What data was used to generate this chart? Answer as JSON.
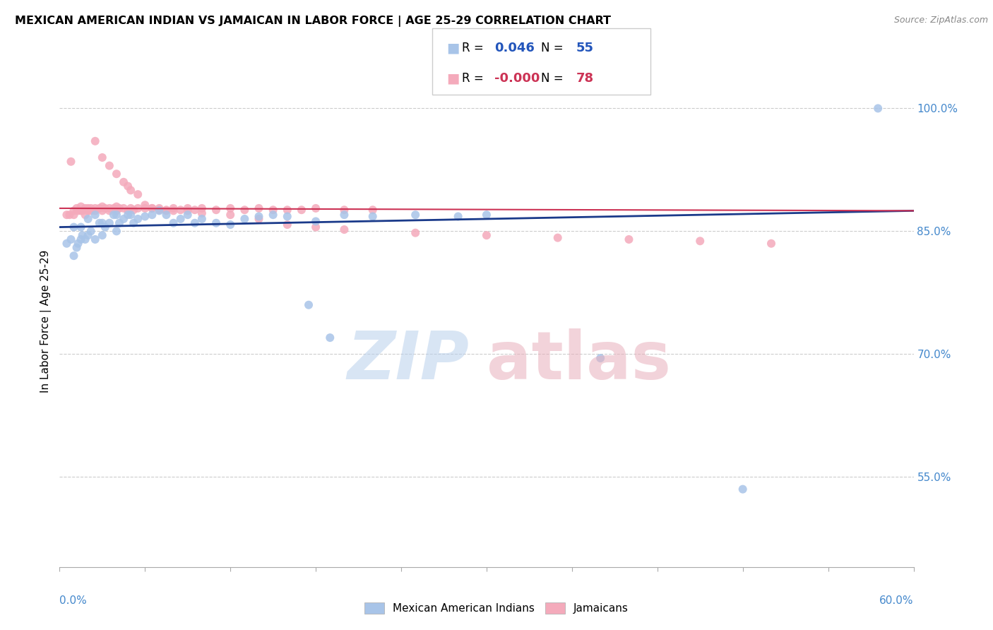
{
  "title": "MEXICAN AMERICAN INDIAN VS JAMAICAN IN LABOR FORCE | AGE 25-29 CORRELATION CHART",
  "source": "Source: ZipAtlas.com",
  "ylabel": "In Labor Force | Age 25-29",
  "blue_R": "0.046",
  "blue_N": "55",
  "pink_R": "-0.000",
  "pink_N": "78",
  "blue_color": "#a8c4e8",
  "pink_color": "#f4aabb",
  "blue_line_color": "#1a3a8a",
  "pink_line_color": "#cc3355",
  "legend_label_blue": "Mexican American Indians",
  "legend_label_pink": "Jamaicans",
  "xlim": [
    0.0,
    0.6
  ],
  "ylim": [
    0.44,
    1.04
  ],
  "yticks": [
    0.55,
    0.7,
    0.85,
    1.0
  ],
  "ytick_labels": [
    "55.0%",
    "70.0%",
    "85.0%",
    "100.0%"
  ],
  "blue_scatter_x": [
    0.005,
    0.008,
    0.01,
    0.01,
    0.012,
    0.013,
    0.015,
    0.015,
    0.016,
    0.018,
    0.02,
    0.02,
    0.022,
    0.025,
    0.025,
    0.028,
    0.03,
    0.03,
    0.032,
    0.035,
    0.038,
    0.04,
    0.04,
    0.042,
    0.045,
    0.048,
    0.05,
    0.052,
    0.055,
    0.06,
    0.065,
    0.07,
    0.075,
    0.08,
    0.085,
    0.09,
    0.095,
    0.1,
    0.11,
    0.12,
    0.13,
    0.14,
    0.15,
    0.16,
    0.18,
    0.2,
    0.22,
    0.25,
    0.28,
    0.3,
    0.175,
    0.19,
    0.38,
    0.48,
    0.575
  ],
  "blue_scatter_y": [
    0.835,
    0.84,
    0.82,
    0.855,
    0.83,
    0.835,
    0.84,
    0.855,
    0.845,
    0.84,
    0.845,
    0.865,
    0.85,
    0.87,
    0.84,
    0.86,
    0.86,
    0.845,
    0.855,
    0.86,
    0.87,
    0.87,
    0.85,
    0.86,
    0.865,
    0.87,
    0.87,
    0.86,
    0.865,
    0.868,
    0.87,
    0.875,
    0.87,
    0.86,
    0.865,
    0.87,
    0.86,
    0.865,
    0.86,
    0.858,
    0.865,
    0.868,
    0.87,
    0.868,
    0.862,
    0.87,
    0.868,
    0.87,
    0.868,
    0.87,
    0.76,
    0.72,
    0.695,
    0.535,
    1.0
  ],
  "pink_scatter_x": [
    0.005,
    0.007,
    0.008,
    0.01,
    0.01,
    0.012,
    0.013,
    0.015,
    0.015,
    0.016,
    0.018,
    0.018,
    0.02,
    0.02,
    0.022,
    0.022,
    0.025,
    0.025,
    0.028,
    0.03,
    0.03,
    0.032,
    0.035,
    0.035,
    0.038,
    0.04,
    0.04,
    0.042,
    0.045,
    0.048,
    0.05,
    0.052,
    0.055,
    0.06,
    0.065,
    0.07,
    0.075,
    0.08,
    0.085,
    0.09,
    0.095,
    0.1,
    0.11,
    0.12,
    0.13,
    0.14,
    0.15,
    0.16,
    0.17,
    0.18,
    0.2,
    0.22,
    0.025,
    0.03,
    0.035,
    0.04,
    0.045,
    0.048,
    0.05,
    0.055,
    0.06,
    0.065,
    0.07,
    0.075,
    0.08,
    0.09,
    0.1,
    0.12,
    0.14,
    0.16,
    0.18,
    0.2,
    0.25,
    0.3,
    0.35,
    0.4,
    0.45,
    0.5
  ],
  "pink_scatter_y": [
    0.87,
    0.87,
    0.935,
    0.875,
    0.87,
    0.878,
    0.875,
    0.875,
    0.88,
    0.875,
    0.878,
    0.87,
    0.878,
    0.875,
    0.878,
    0.875,
    0.878,
    0.875,
    0.878,
    0.88,
    0.875,
    0.878,
    0.878,
    0.875,
    0.878,
    0.88,
    0.875,
    0.878,
    0.878,
    0.875,
    0.878,
    0.876,
    0.878,
    0.878,
    0.878,
    0.878,
    0.876,
    0.878,
    0.876,
    0.878,
    0.876,
    0.878,
    0.876,
    0.878,
    0.876,
    0.878,
    0.876,
    0.876,
    0.876,
    0.878,
    0.876,
    0.876,
    0.96,
    0.94,
    0.93,
    0.92,
    0.91,
    0.905,
    0.9,
    0.895,
    0.882,
    0.878,
    0.876,
    0.875,
    0.875,
    0.875,
    0.872,
    0.87,
    0.865,
    0.858,
    0.855,
    0.852,
    0.848,
    0.845,
    0.842,
    0.84,
    0.838,
    0.835
  ]
}
